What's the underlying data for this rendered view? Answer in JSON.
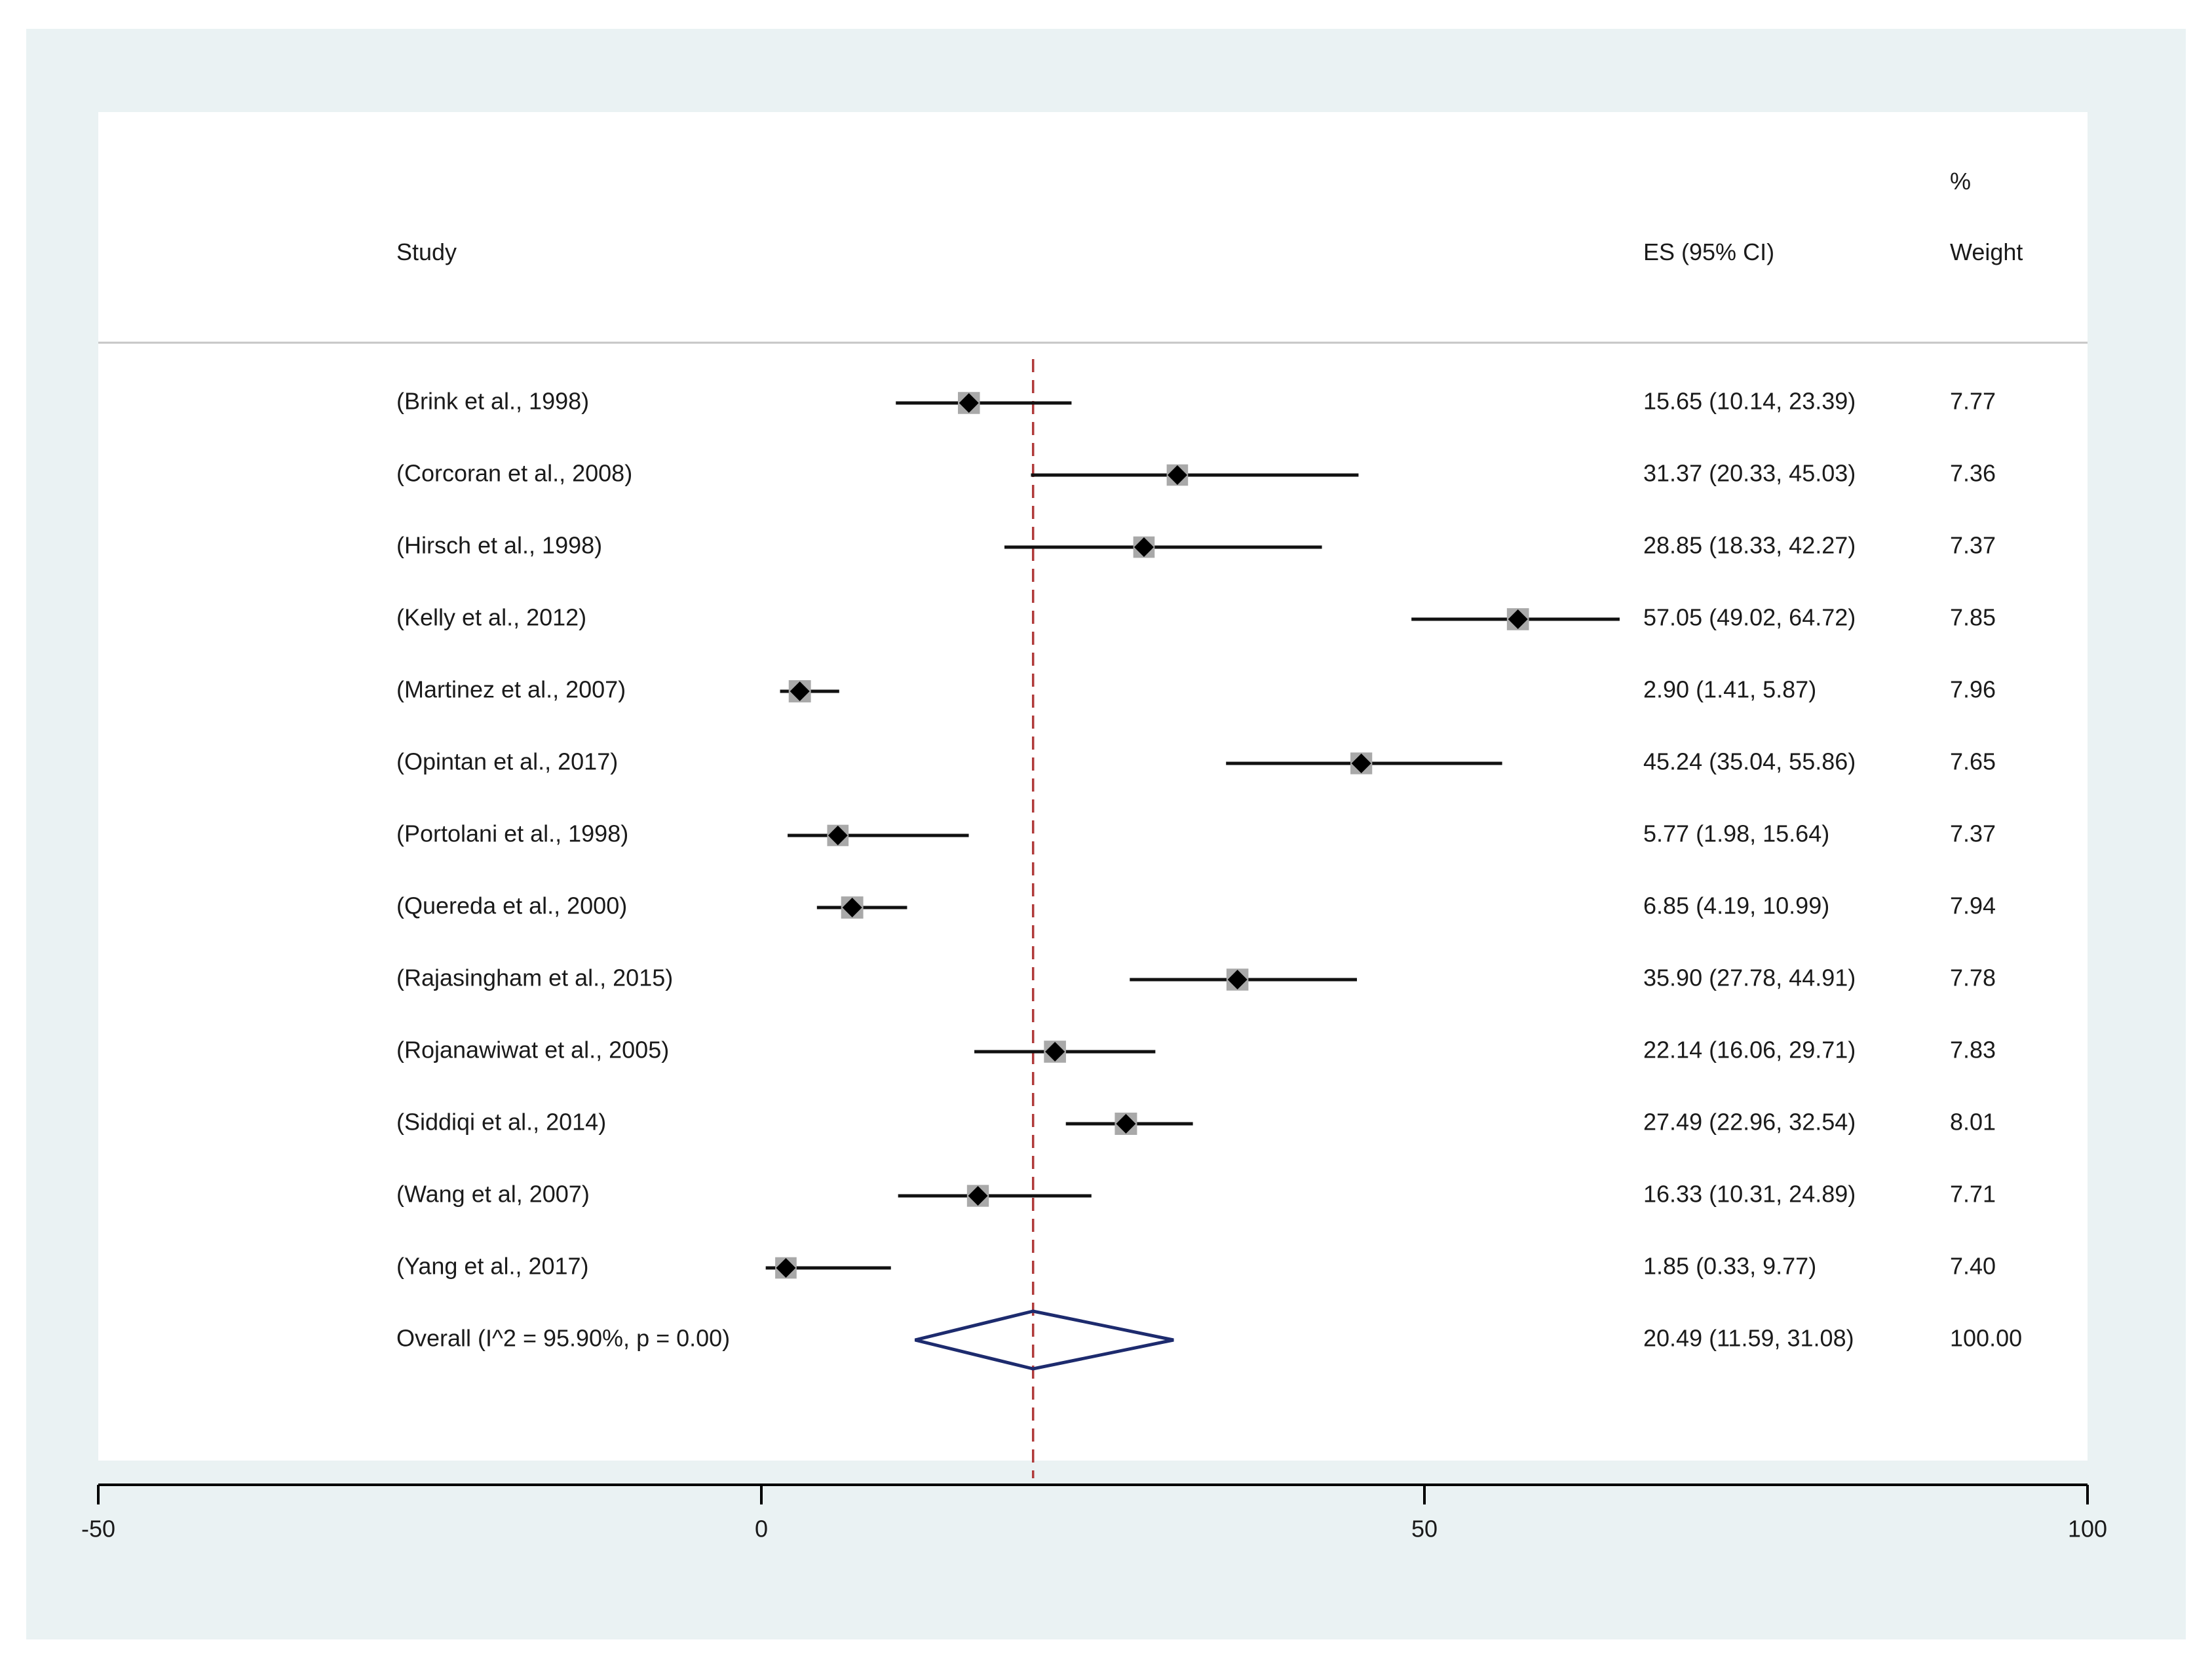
{
  "chart_data": {
    "type": "forest",
    "headers": {
      "study": "Study",
      "es": "ES (95% CI)",
      "weight_top": "%",
      "weight_bottom": "Weight"
    },
    "studies": [
      {
        "label": "(Brink et al., 1998)",
        "es": 15.65,
        "lo": 10.14,
        "hi": 23.39,
        "ci_text": "15.65 (10.14, 23.39)",
        "weight": 7.77,
        "weight_text": "7.77"
      },
      {
        "label": "(Corcoran et al., 2008)",
        "es": 31.37,
        "lo": 20.33,
        "hi": 45.03,
        "ci_text": "31.37 (20.33, 45.03)",
        "weight": 7.36,
        "weight_text": "7.36"
      },
      {
        "label": "(Hirsch et al., 1998)",
        "es": 28.85,
        "lo": 18.33,
        "hi": 42.27,
        "ci_text": "28.85 (18.33, 42.27)",
        "weight": 7.37,
        "weight_text": "7.37"
      },
      {
        "label": "(Kelly et al., 2012)",
        "es": 57.05,
        "lo": 49.02,
        "hi": 64.72,
        "ci_text": "57.05 (49.02, 64.72)",
        "weight": 7.85,
        "weight_text": "7.85"
      },
      {
        "label": "(Martinez et al., 2007)",
        "es": 2.9,
        "lo": 1.41,
        "hi": 5.87,
        "ci_text": "2.90 (1.41, 5.87)",
        "weight": 7.96,
        "weight_text": "7.96"
      },
      {
        "label": "(Opintan et al., 2017)",
        "es": 45.24,
        "lo": 35.04,
        "hi": 55.86,
        "ci_text": "45.24 (35.04, 55.86)",
        "weight": 7.65,
        "weight_text": "7.65"
      },
      {
        "label": "(Portolani et al., 1998)",
        "es": 5.77,
        "lo": 1.98,
        "hi": 15.64,
        "ci_text": "5.77 (1.98, 15.64)",
        "weight": 7.37,
        "weight_text": "7.37"
      },
      {
        "label": "(Quereda et al., 2000)",
        "es": 6.85,
        "lo": 4.19,
        "hi": 10.99,
        "ci_text": "6.85 (4.19, 10.99)",
        "weight": 7.94,
        "weight_text": "7.94"
      },
      {
        "label": "(Rajasingham et al., 2015)",
        "es": 35.9,
        "lo": 27.78,
        "hi": 44.91,
        "ci_text": "35.90 (27.78, 44.91)",
        "weight": 7.78,
        "weight_text": "7.78"
      },
      {
        "label": "(Rojanawiwat et al., 2005)",
        "es": 22.14,
        "lo": 16.06,
        "hi": 29.71,
        "ci_text": "22.14 (16.06, 29.71)",
        "weight": 7.83,
        "weight_text": "7.83"
      },
      {
        "label": "(Siddiqi et al., 2014)",
        "es": 27.49,
        "lo": 22.96,
        "hi": 32.54,
        "ci_text": "27.49 (22.96, 32.54)",
        "weight": 8.01,
        "weight_text": "8.01"
      },
      {
        "label": "(Wang et al, 2007)",
        "es": 16.33,
        "lo": 10.31,
        "hi": 24.89,
        "ci_text": "16.33 (10.31, 24.89)",
        "weight": 7.71,
        "weight_text": "7.71"
      },
      {
        "label": "(Yang et al., 2017)",
        "es": 1.85,
        "lo": 0.33,
        "hi": 9.77,
        "ci_text": "1.85 (0.33, 9.77)",
        "weight": 7.4,
        "weight_text": "7.40"
      }
    ],
    "overall": {
      "label": "Overall  (I^2 = 95.90%, p = 0.00)",
      "es": 20.49,
      "lo": 11.59,
      "hi": 31.08,
      "ci_text": "20.49 (11.59, 31.08)",
      "weight_text": "100.00"
    },
    "x_axis": {
      "min": -50,
      "max": 100,
      "ticks": [
        -50,
        0,
        50,
        100
      ],
      "tick_labels": [
        "-50",
        "0",
        "50",
        "100"
      ]
    },
    "colors": {
      "background": "#eaf2f3",
      "plot": "#ffffff",
      "ci_line": "#111111",
      "weight_box": "#a9a9a9",
      "point": "#000000",
      "overall_diamond": "#1d2b6e",
      "reference_line": "#b03a3a",
      "header_rule": "#c6c6c6"
    }
  }
}
